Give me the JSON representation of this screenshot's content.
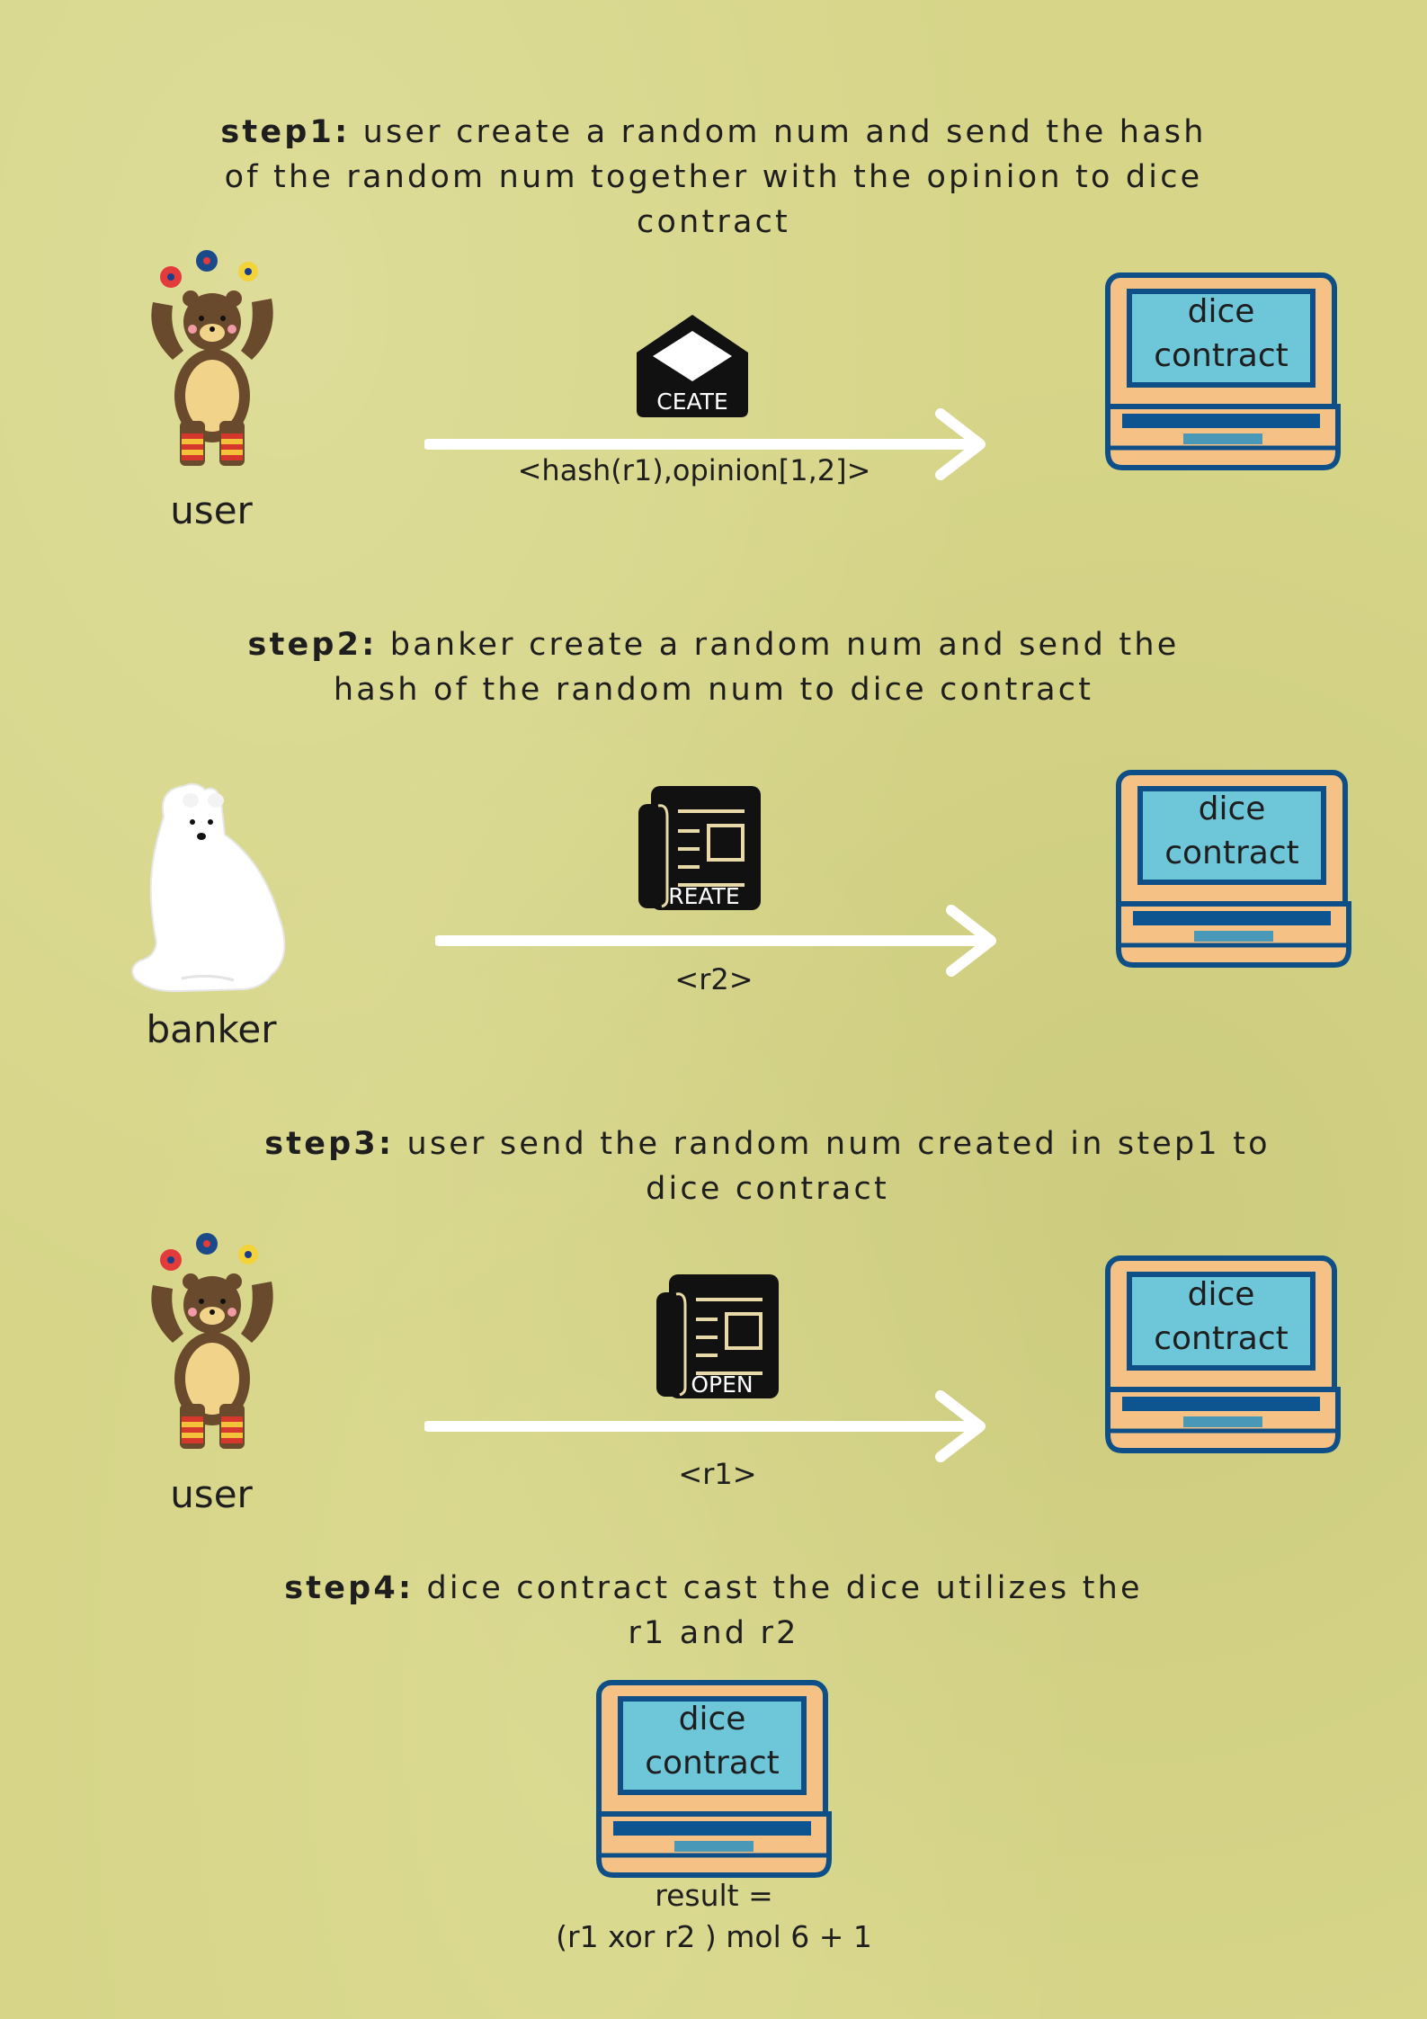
{
  "colors": {
    "background": "#d6d588",
    "arrow": "#ffffff",
    "laptop_body": "#f6c184",
    "laptop_outline": "#0d4f86",
    "screen": "#6ec6d9",
    "keyboard": "#0d5590",
    "touchpad": "#4a98b8",
    "icon": "#111111"
  },
  "steps": [
    {
      "prefix": "step1:",
      "text": " user create a random num and send the hash of the random num together with the opinion to  dice contract",
      "line1_rest": " user create a random num and send the hash",
      "line2": "of the random num together with the opinion to  dice",
      "line3": "contract",
      "actor": {
        "label": "user",
        "icon": "juggling-bear-icon"
      },
      "message_icon": {
        "name": "envelope-icon",
        "label": "CEATE"
      },
      "message": "<hash(r1),opinion[1,2]>",
      "target": {
        "line1": "dice",
        "line2": "contract"
      }
    },
    {
      "prefix": "step2:",
      "line1_rest": " banker create a random num and send the",
      "line2": "hash of the random num to  dice contract",
      "actor": {
        "label": "banker",
        "icon": "polar-bear-icon"
      },
      "message_icon": {
        "name": "newspaper-icon",
        "label": "REATE"
      },
      "message": "<r2>",
      "target": {
        "line1": "dice",
        "line2": "contract"
      }
    },
    {
      "prefix": "step3:",
      "line1_rest": " user send the random num created in step1 to",
      "line2": "dice contract",
      "actor": {
        "label": "user",
        "icon": "juggling-bear-icon"
      },
      "message_icon": {
        "name": "newspaper-icon",
        "label": "OPEN"
      },
      "message": "<r1>",
      "target": {
        "line1": "dice",
        "line2": "contract"
      }
    },
    {
      "prefix": "step4:",
      "line1_rest": " dice contract cast the dice utilizes the",
      "line2": "r1 and r2",
      "target": {
        "line1": "dice",
        "line2": "contract"
      },
      "result_line1": "result =",
      "result_line2": "(r1 xor r2 ) mol 6 + 1"
    }
  ]
}
